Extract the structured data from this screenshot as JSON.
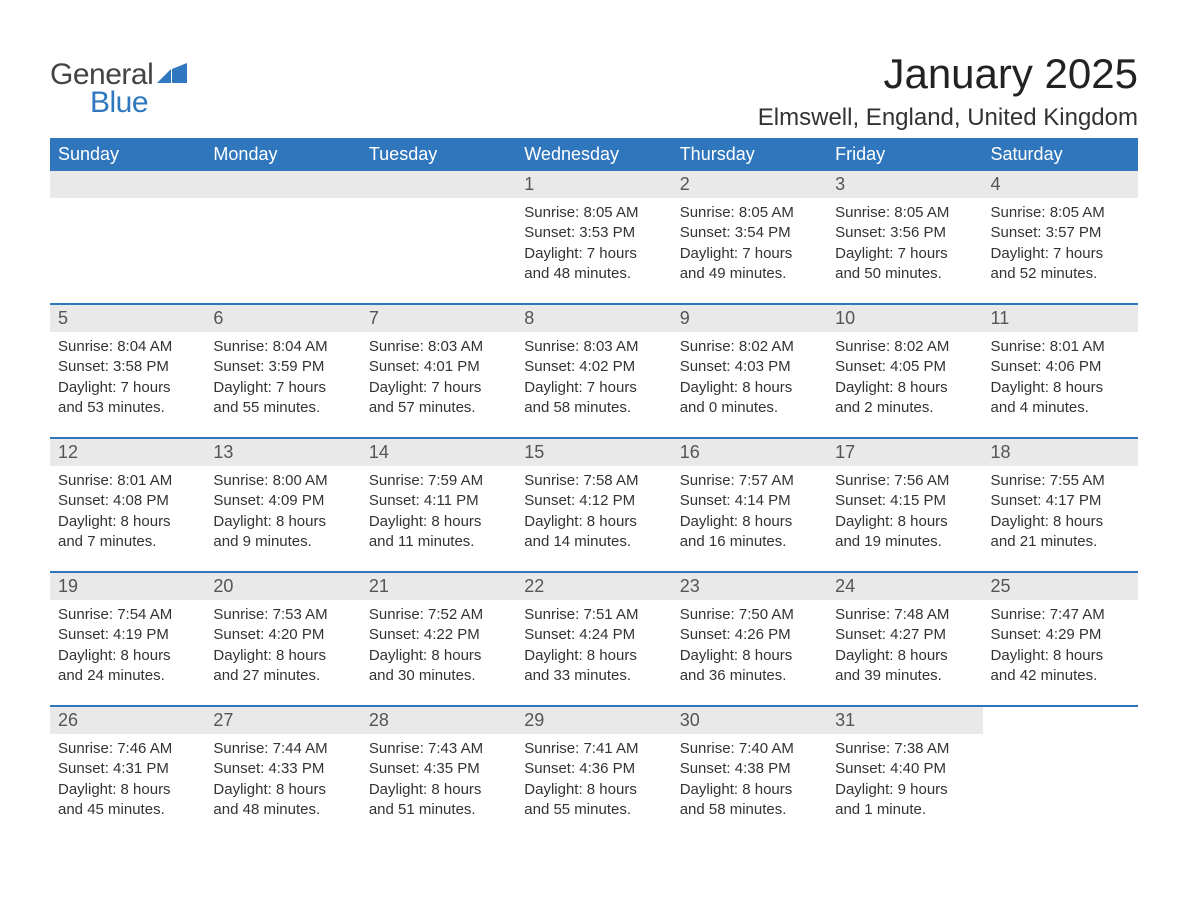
{
  "logo": {
    "text1": "General",
    "text2": "Blue",
    "shape_color": "#2f78bf"
  },
  "title": "January 2025",
  "location": "Elmswell, England, United Kingdom",
  "colors": {
    "header_bg": "#3076bd",
    "header_text": "#ffffff",
    "daynum_bg": "#e9e9e9",
    "daynum_text": "#555555",
    "body_text": "#333333",
    "page_bg": "#ffffff"
  },
  "day_headers": [
    "Sunday",
    "Monday",
    "Tuesday",
    "Wednesday",
    "Thursday",
    "Friday",
    "Saturday"
  ],
  "weeks": [
    [
      null,
      null,
      null,
      {
        "day": "1",
        "sunrise": "Sunrise: 8:05 AM",
        "sunset": "Sunset: 3:53 PM",
        "daylight1": "Daylight: 7 hours",
        "daylight2": "and 48 minutes."
      },
      {
        "day": "2",
        "sunrise": "Sunrise: 8:05 AM",
        "sunset": "Sunset: 3:54 PM",
        "daylight1": "Daylight: 7 hours",
        "daylight2": "and 49 minutes."
      },
      {
        "day": "3",
        "sunrise": "Sunrise: 8:05 AM",
        "sunset": "Sunset: 3:56 PM",
        "daylight1": "Daylight: 7 hours",
        "daylight2": "and 50 minutes."
      },
      {
        "day": "4",
        "sunrise": "Sunrise: 8:05 AM",
        "sunset": "Sunset: 3:57 PM",
        "daylight1": "Daylight: 7 hours",
        "daylight2": "and 52 minutes."
      }
    ],
    [
      {
        "day": "5",
        "sunrise": "Sunrise: 8:04 AM",
        "sunset": "Sunset: 3:58 PM",
        "daylight1": "Daylight: 7 hours",
        "daylight2": "and 53 minutes."
      },
      {
        "day": "6",
        "sunrise": "Sunrise: 8:04 AM",
        "sunset": "Sunset: 3:59 PM",
        "daylight1": "Daylight: 7 hours",
        "daylight2": "and 55 minutes."
      },
      {
        "day": "7",
        "sunrise": "Sunrise: 8:03 AM",
        "sunset": "Sunset: 4:01 PM",
        "daylight1": "Daylight: 7 hours",
        "daylight2": "and 57 minutes."
      },
      {
        "day": "8",
        "sunrise": "Sunrise: 8:03 AM",
        "sunset": "Sunset: 4:02 PM",
        "daylight1": "Daylight: 7 hours",
        "daylight2": "and 58 minutes."
      },
      {
        "day": "9",
        "sunrise": "Sunrise: 8:02 AM",
        "sunset": "Sunset: 4:03 PM",
        "daylight1": "Daylight: 8 hours",
        "daylight2": "and 0 minutes."
      },
      {
        "day": "10",
        "sunrise": "Sunrise: 8:02 AM",
        "sunset": "Sunset: 4:05 PM",
        "daylight1": "Daylight: 8 hours",
        "daylight2": "and 2 minutes."
      },
      {
        "day": "11",
        "sunrise": "Sunrise: 8:01 AM",
        "sunset": "Sunset: 4:06 PM",
        "daylight1": "Daylight: 8 hours",
        "daylight2": "and 4 minutes."
      }
    ],
    [
      {
        "day": "12",
        "sunrise": "Sunrise: 8:01 AM",
        "sunset": "Sunset: 4:08 PM",
        "daylight1": "Daylight: 8 hours",
        "daylight2": "and 7 minutes."
      },
      {
        "day": "13",
        "sunrise": "Sunrise: 8:00 AM",
        "sunset": "Sunset: 4:09 PM",
        "daylight1": "Daylight: 8 hours",
        "daylight2": "and 9 minutes."
      },
      {
        "day": "14",
        "sunrise": "Sunrise: 7:59 AM",
        "sunset": "Sunset: 4:11 PM",
        "daylight1": "Daylight: 8 hours",
        "daylight2": "and 11 minutes."
      },
      {
        "day": "15",
        "sunrise": "Sunrise: 7:58 AM",
        "sunset": "Sunset: 4:12 PM",
        "daylight1": "Daylight: 8 hours",
        "daylight2": "and 14 minutes."
      },
      {
        "day": "16",
        "sunrise": "Sunrise: 7:57 AM",
        "sunset": "Sunset: 4:14 PM",
        "daylight1": "Daylight: 8 hours",
        "daylight2": "and 16 minutes."
      },
      {
        "day": "17",
        "sunrise": "Sunrise: 7:56 AM",
        "sunset": "Sunset: 4:15 PM",
        "daylight1": "Daylight: 8 hours",
        "daylight2": "and 19 minutes."
      },
      {
        "day": "18",
        "sunrise": "Sunrise: 7:55 AM",
        "sunset": "Sunset: 4:17 PM",
        "daylight1": "Daylight: 8 hours",
        "daylight2": "and 21 minutes."
      }
    ],
    [
      {
        "day": "19",
        "sunrise": "Sunrise: 7:54 AM",
        "sunset": "Sunset: 4:19 PM",
        "daylight1": "Daylight: 8 hours",
        "daylight2": "and 24 minutes."
      },
      {
        "day": "20",
        "sunrise": "Sunrise: 7:53 AM",
        "sunset": "Sunset: 4:20 PM",
        "daylight1": "Daylight: 8 hours",
        "daylight2": "and 27 minutes."
      },
      {
        "day": "21",
        "sunrise": "Sunrise: 7:52 AM",
        "sunset": "Sunset: 4:22 PM",
        "daylight1": "Daylight: 8 hours",
        "daylight2": "and 30 minutes."
      },
      {
        "day": "22",
        "sunrise": "Sunrise: 7:51 AM",
        "sunset": "Sunset: 4:24 PM",
        "daylight1": "Daylight: 8 hours",
        "daylight2": "and 33 minutes."
      },
      {
        "day": "23",
        "sunrise": "Sunrise: 7:50 AM",
        "sunset": "Sunset: 4:26 PM",
        "daylight1": "Daylight: 8 hours",
        "daylight2": "and 36 minutes."
      },
      {
        "day": "24",
        "sunrise": "Sunrise: 7:48 AM",
        "sunset": "Sunset: 4:27 PM",
        "daylight1": "Daylight: 8 hours",
        "daylight2": "and 39 minutes."
      },
      {
        "day": "25",
        "sunrise": "Sunrise: 7:47 AM",
        "sunset": "Sunset: 4:29 PM",
        "daylight1": "Daylight: 8 hours",
        "daylight2": "and 42 minutes."
      }
    ],
    [
      {
        "day": "26",
        "sunrise": "Sunrise: 7:46 AM",
        "sunset": "Sunset: 4:31 PM",
        "daylight1": "Daylight: 8 hours",
        "daylight2": "and 45 minutes."
      },
      {
        "day": "27",
        "sunrise": "Sunrise: 7:44 AM",
        "sunset": "Sunset: 4:33 PM",
        "daylight1": "Daylight: 8 hours",
        "daylight2": "and 48 minutes."
      },
      {
        "day": "28",
        "sunrise": "Sunrise: 7:43 AM",
        "sunset": "Sunset: 4:35 PM",
        "daylight1": "Daylight: 8 hours",
        "daylight2": "and 51 minutes."
      },
      {
        "day": "29",
        "sunrise": "Sunrise: 7:41 AM",
        "sunset": "Sunset: 4:36 PM",
        "daylight1": "Daylight: 8 hours",
        "daylight2": "and 55 minutes."
      },
      {
        "day": "30",
        "sunrise": "Sunrise: 7:40 AM",
        "sunset": "Sunset: 4:38 PM",
        "daylight1": "Daylight: 8 hours",
        "daylight2": "and 58 minutes."
      },
      {
        "day": "31",
        "sunrise": "Sunrise: 7:38 AM",
        "sunset": "Sunset: 4:40 PM",
        "daylight1": "Daylight: 9 hours",
        "daylight2": "and 1 minute."
      },
      null
    ]
  ]
}
